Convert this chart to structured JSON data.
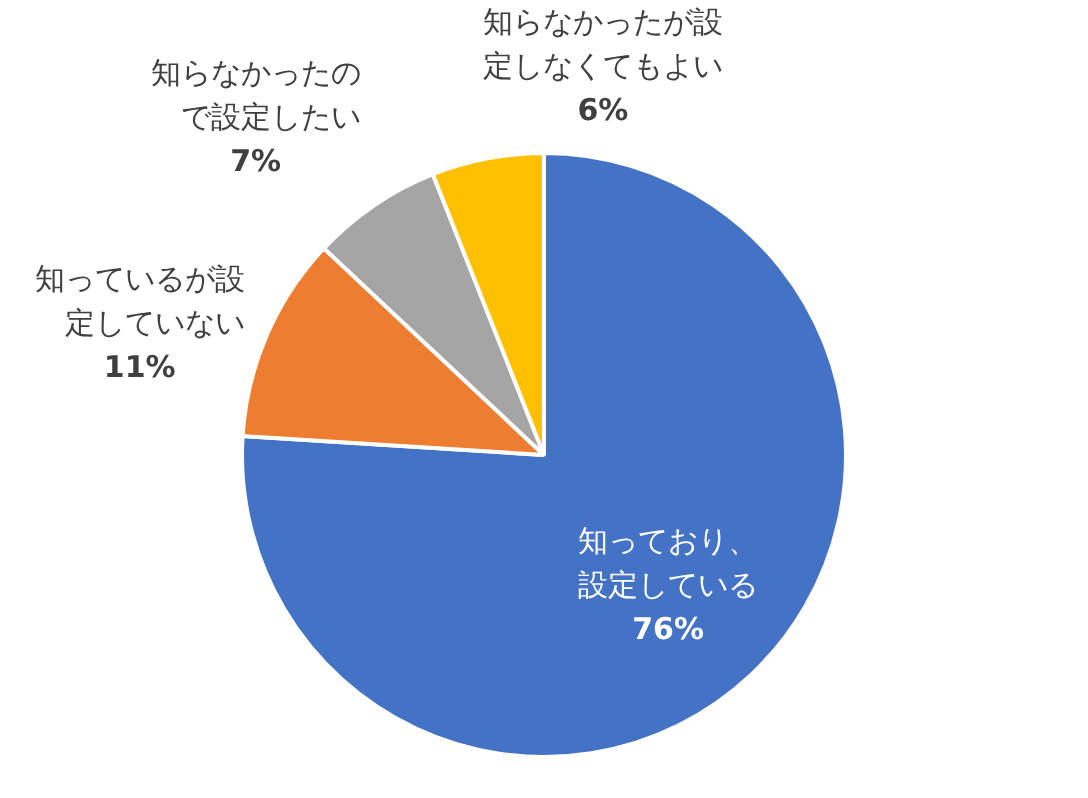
{
  "chart_data": {
    "type": "pie",
    "categories": [
      "知っており、設定している",
      "知っているが設定していない",
      "知らなかったので設定したい",
      "知らなかったが設定しなくてもよい"
    ],
    "values": [
      76,
      11,
      7,
      6
    ],
    "colors": [
      "#4472c4",
      "#ed7d31",
      "#a5a5a5",
      "#ffc000"
    ],
    "value_labels": [
      "76%",
      "11%",
      "7%",
      "6%"
    ],
    "legend": false
  }
}
